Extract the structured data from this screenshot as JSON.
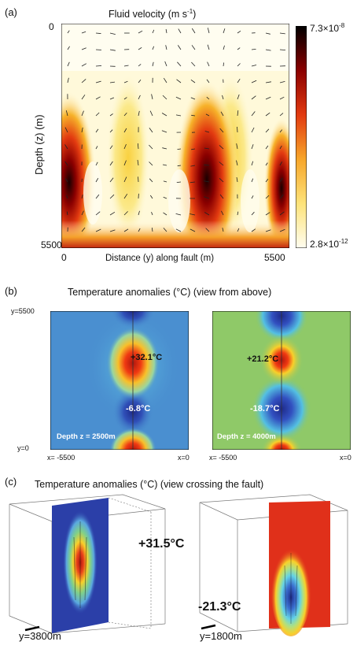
{
  "panel_a": {
    "label": "(a)",
    "title": "Fluid velocity (m s",
    "title_sup": "-1",
    "title_end": ")",
    "y_axis_label": "Depth (z) (m)",
    "y_top": "0",
    "y_bottom": "5500",
    "x_left": "0",
    "x_right": "5500",
    "x_axis_label": "Distance (y) along fault (m)",
    "colorbar_max": "7.3×10",
    "colorbar_max_exp": "-8",
    "colorbar_min": "2.8×10",
    "colorbar_min_exp": "-12"
  },
  "panel_b": {
    "label": "(b)",
    "title": "Temperature anomalies (°C) (view from above)",
    "y_top": "y=5500",
    "y_bottom": "y=0",
    "left": {
      "x_left": "x= -5500",
      "x_right": "x=0",
      "anno_hot": "+32.1°C",
      "anno_cold": "-6.8°C",
      "depth": "Depth z = 2500m"
    },
    "right": {
      "x_left": "x= -5500",
      "x_right": "x=0",
      "anno_hot": "+21.2°C",
      "anno_cold": "-18.7°C",
      "depth": "Depth z = 4000m"
    }
  },
  "panel_c": {
    "label": "(c)",
    "title": "Temperature anomalies (°C) (view crossing the fault)",
    "left": {
      "anno": "+31.5°C",
      "slice": "y=3800m"
    },
    "right": {
      "anno": "-21.3°C",
      "slice": "y=1800m"
    }
  },
  "colors": {
    "cold": "#2b3fa8",
    "hot": "#b0160e",
    "background_b_left": "#4a8fd0",
    "background_b_right": "#8fc968"
  }
}
